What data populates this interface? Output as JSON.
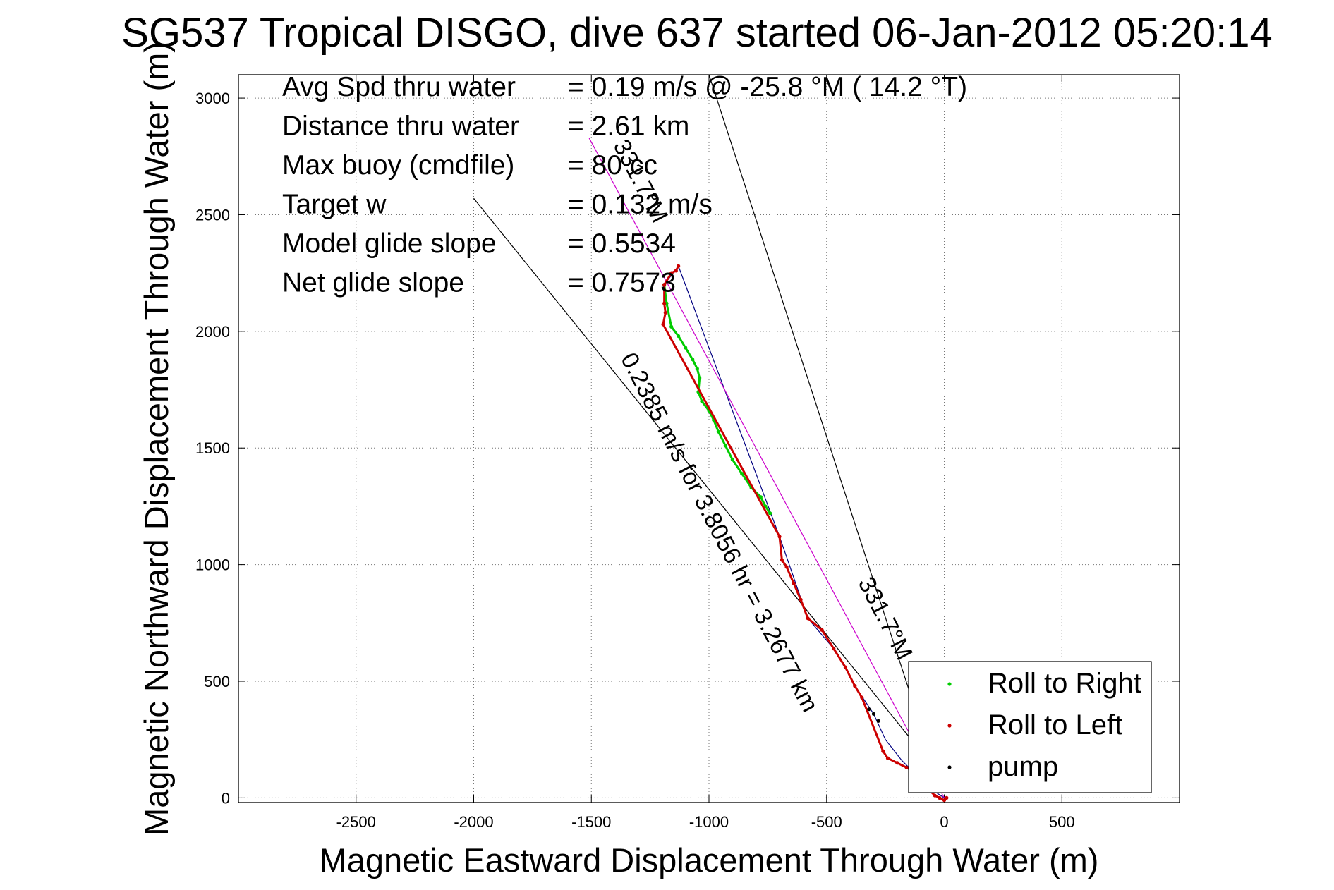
{
  "chart_data": {
    "type": "scatter",
    "title": "SG537 Tropical DISGO, dive 637 started 06-Jan-2012 05:20:14",
    "xlabel": "Magnetic Eastward Displacement Through Water (m)",
    "ylabel": "Magnetic Northward Displacement Through Water (m)",
    "xlim": [
      -3000,
      1000
    ],
    "ylim": [
      -20,
      3100
    ],
    "xticks": [
      -2500,
      -2000,
      -1500,
      -1000,
      -500,
      0,
      500
    ],
    "yticks": [
      0,
      500,
      1000,
      1500,
      2000,
      2500,
      3000
    ],
    "xtick_labels": [
      "-2500",
      "-2000",
      "-1500",
      "-1000",
      "-500",
      "0",
      "500"
    ],
    "ytick_labels": [
      "0",
      "500",
      "1000",
      "1500",
      "2000",
      "2500",
      "3000"
    ],
    "grid": true,
    "legend_position": "bottom-right",
    "annotations": [
      {
        "label": "Avg Spd thru water",
        "value": "=  0.19 m/s @ -25.8 °M ( 14.2 °T)"
      },
      {
        "label": "Distance thru water",
        "value": "=  2.61 km"
      },
      {
        "label": "Max buoy (cmdfile)",
        "value": "= 80 cc"
      },
      {
        "label": "Target w",
        "value": "= 0.132 m/s"
      },
      {
        "label": "Model glide slope",
        "value": "= 0.5534"
      },
      {
        "label": "Net glide slope",
        "value": "= 0.7573"
      }
    ],
    "trajectory_labels": [
      {
        "text": "0.2385 m/s for 3.8056 hr = 3.2677 km"
      },
      {
        "text": "331.7°M"
      },
      {
        "text": "331.7°M"
      }
    ],
    "series": [
      {
        "name": "Roll to Right",
        "color": "#00cc00",
        "x": [
          -1190,
          -1180,
          -1160,
          -1130,
          -1100,
          -1070,
          -1050,
          -1040,
          -1045,
          -1030,
          -1000,
          -980,
          -960,
          -930,
          -900,
          -860,
          -820,
          -780,
          -760,
          -740
        ],
        "y": [
          2200,
          2120,
          2020,
          1980,
          1930,
          1880,
          1840,
          1800,
          1740,
          1700,
          1660,
          1620,
          1570,
          1510,
          1450,
          1390,
          1330,
          1290,
          1250,
          1220
        ]
      },
      {
        "name": "Roll to Left",
        "color": "#cc0000",
        "x": [
          -1130,
          -1140,
          -1160,
          -1190,
          -1190,
          -1185,
          -1195,
          -700,
          -690,
          -670,
          -640,
          -610,
          -580,
          -520,
          -470,
          -420,
          -380,
          -350,
          -260,
          -240,
          -200,
          -160,
          -110,
          -80,
          -60,
          -40,
          -20,
          0,
          10
        ],
        "y": [
          2280,
          2260,
          2250,
          2200,
          2120,
          2080,
          2030,
          1120,
          1020,
          990,
          920,
          850,
          770,
          720,
          640,
          560,
          480,
          430,
          200,
          170,
          150,
          130,
          100,
          60,
          30,
          10,
          0,
          -10,
          0
        ]
      },
      {
        "name": "pump",
        "color": "#000000",
        "x": [
          -320,
          -300,
          -280
        ],
        "y": [
          380,
          360,
          330
        ]
      }
    ],
    "lines": [
      {
        "name": "net-track-line",
        "color": "#000080",
        "x": [
          -1190,
          -1130,
          -700,
          -580,
          -470,
          -360,
          -300,
          -250,
          -180,
          -120,
          -60,
          0
        ],
        "y": [
          2200,
          2280,
          1120,
          770,
          640,
          450,
          360,
          250,
          160,
          100,
          40,
          0
        ]
      },
      {
        "name": "target-heading-line",
        "color": "#cc00cc",
        "x": [
          -1510,
          0
        ],
        "y": [
          2830,
          0
        ]
      },
      {
        "name": "heading-ray-1",
        "color": "#000000",
        "x": [
          -2000,
          -100
        ],
        "y": [
          2570,
          200
        ]
      },
      {
        "name": "heading-ray-2",
        "color": "#000000",
        "x": [
          -1000,
          -20
        ],
        "y": [
          3100,
          60
        ]
      }
    ]
  }
}
